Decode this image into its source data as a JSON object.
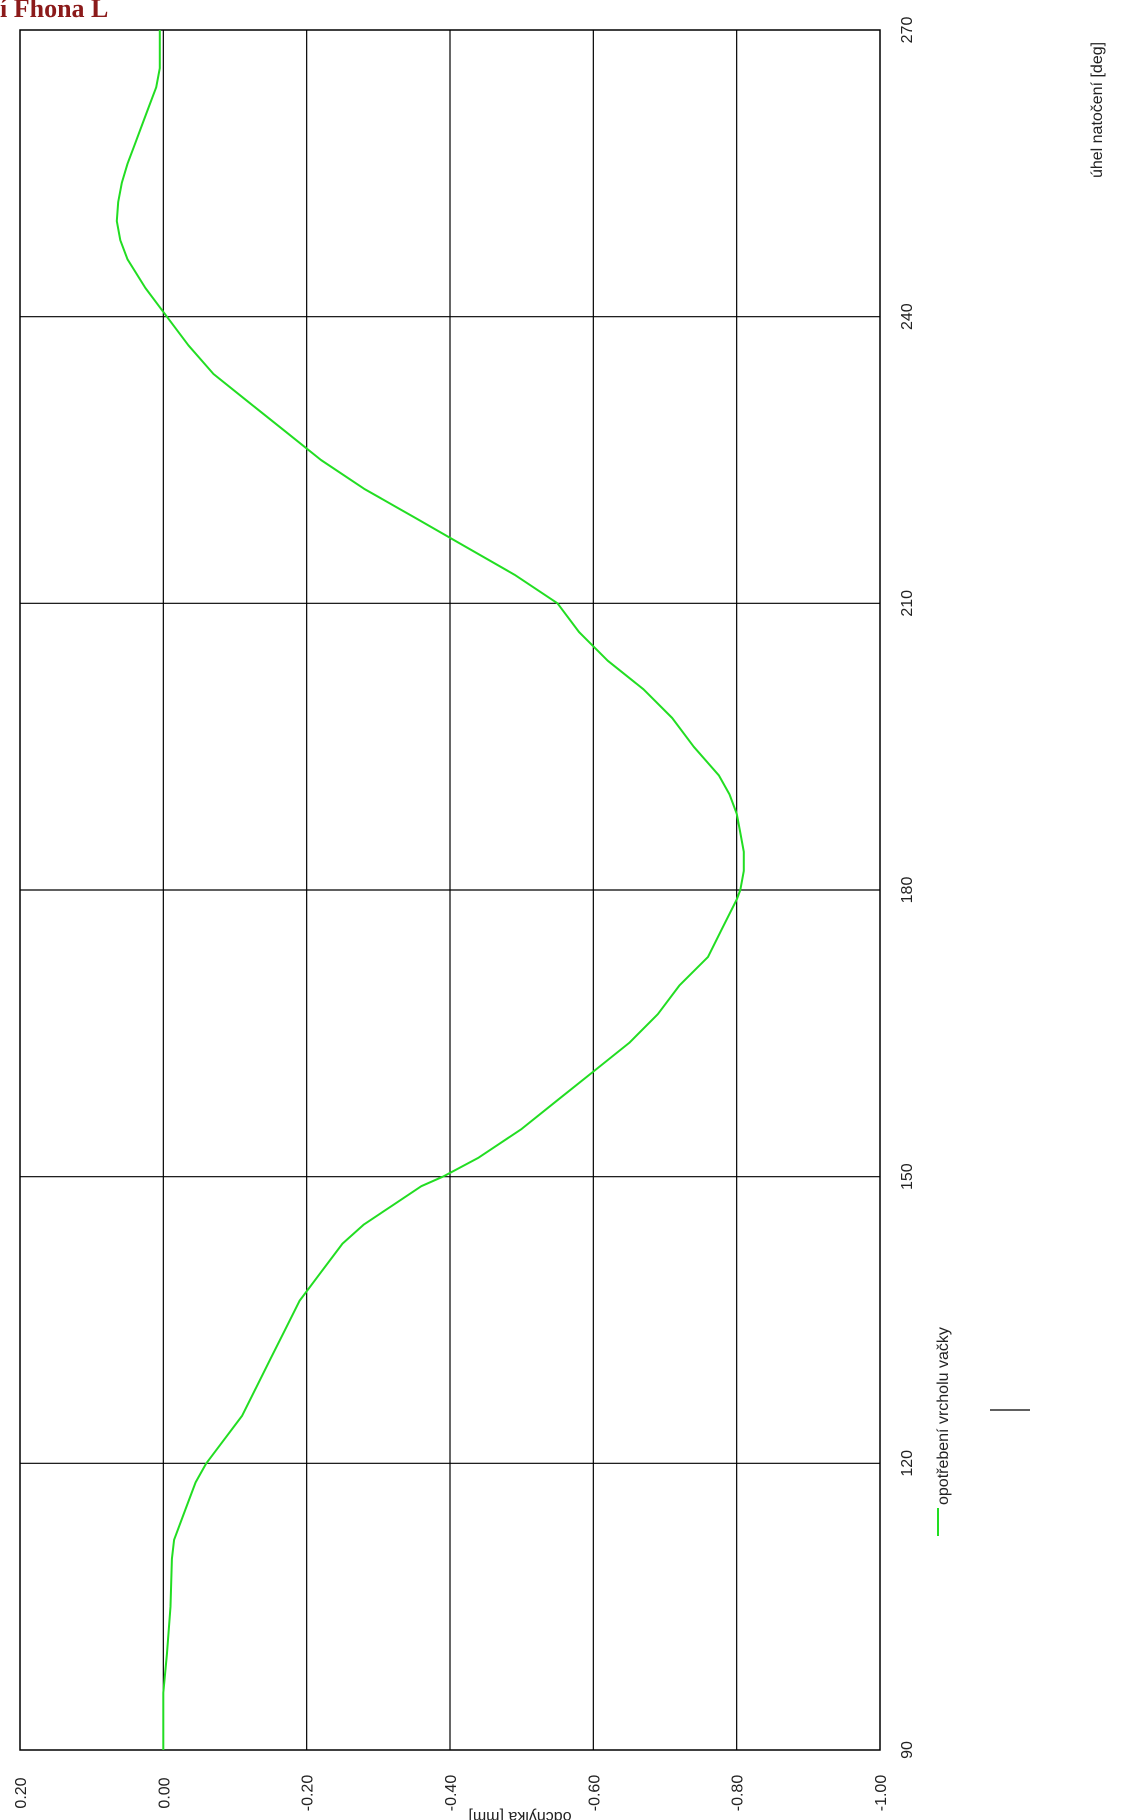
{
  "page_title": "í Fhona L",
  "colors": {
    "grid": "#000000",
    "series": "#22dd22",
    "background": "#ffffff",
    "title": "#8b1a1a"
  },
  "chart_data": {
    "type": "line",
    "orientation": "rotated-90-clockwise",
    "xlabel": "úhel natočení [deg]",
    "ylabel": "odchylka [mm]",
    "xlim": [
      90,
      270
    ],
    "ylim": [
      -1.0,
      0.2
    ],
    "x_ticks": [
      "90",
      "120",
      "150",
      "180",
      "210",
      "240",
      "270"
    ],
    "y_ticks": [
      "0.20",
      "0.00",
      "-0.20",
      "-0.40",
      "-0.60",
      "-0.80",
      "-1.00"
    ],
    "grid": true,
    "legend_position": "lower-left",
    "series": [
      {
        "name": "opotřebení vrcholu vačky",
        "x": [
          90,
          96,
          100,
          105,
          110,
          112,
          115,
          118,
          120,
          122,
          125,
          128,
          131,
          134,
          137,
          140,
          143,
          145,
          147,
          149,
          150,
          152,
          155,
          158,
          161,
          164,
          167,
          170,
          173,
          176,
          179,
          180,
          182,
          184,
          186,
          188,
          190,
          192,
          195,
          198,
          201,
          204,
          207,
          210,
          213,
          216,
          219,
          222,
          225,
          228,
          231,
          234,
          237,
          240,
          243,
          246,
          248,
          250,
          252,
          254,
          256,
          258,
          260,
          262,
          264,
          266,
          268,
          270
        ],
        "y": [
          0.0,
          0.0,
          -0.005,
          -0.01,
          -0.012,
          -0.015,
          -0.03,
          -0.045,
          -0.06,
          -0.08,
          -0.11,
          -0.13,
          -0.15,
          -0.17,
          -0.19,
          -0.22,
          -0.25,
          -0.28,
          -0.32,
          -0.36,
          -0.39,
          -0.44,
          -0.5,
          -0.55,
          -0.6,
          -0.65,
          -0.69,
          -0.72,
          -0.76,
          -0.78,
          -0.8,
          -0.805,
          -0.81,
          -0.81,
          -0.805,
          -0.8,
          -0.79,
          -0.775,
          -0.74,
          -0.71,
          -0.67,
          -0.62,
          -0.58,
          -0.55,
          -0.49,
          -0.42,
          -0.35,
          -0.28,
          -0.22,
          -0.17,
          -0.12,
          -0.07,
          -0.035,
          -0.005,
          0.025,
          0.05,
          0.06,
          0.065,
          0.063,
          0.058,
          0.05,
          0.04,
          0.03,
          0.02,
          0.01,
          0.005,
          0.005,
          0.005
        ]
      }
    ]
  }
}
